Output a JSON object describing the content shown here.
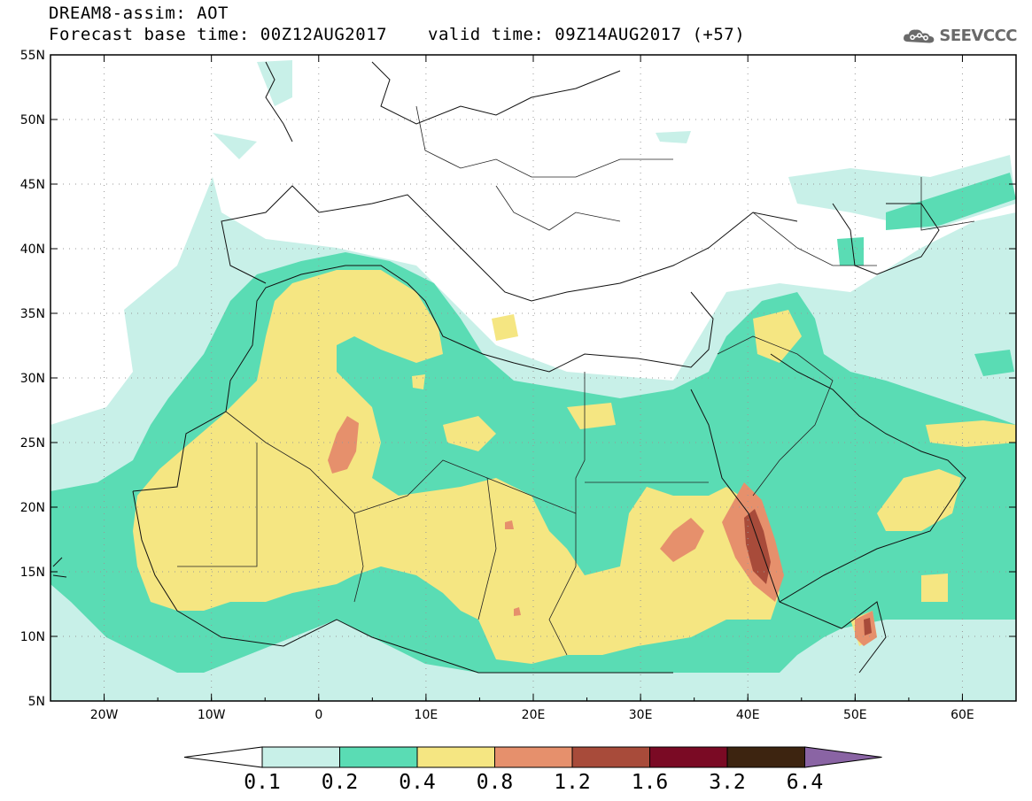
{
  "title": {
    "line1": "DREAM8-assim: AOT",
    "line2": "Forecast base time: 00Z12AUG2017",
    "valid": "valid time: 09Z14AUG2017 (+57)"
  },
  "logo": {
    "text": "SEEVCCC",
    "icon": "cloud-icon"
  },
  "map": {
    "lon_range": [
      -25,
      65
    ],
    "lat_range": [
      5,
      55
    ],
    "lon_ticks": [
      "20W",
      "10W",
      "0",
      "10E",
      "20E",
      "30E",
      "40E",
      "50E",
      "60E"
    ],
    "lat_ticks": [
      "5N",
      "10N",
      "15N",
      "20N",
      "25N",
      "30N",
      "35N",
      "40N",
      "45N",
      "50N",
      "55N"
    ],
    "grid": "dotted"
  },
  "colorbar": {
    "labels": [
      "0.1",
      "0.2",
      "0.4",
      "0.8",
      "1.2",
      "1.6",
      "3.2",
      "6.4"
    ],
    "colors": [
      "#c8f0e8",
      "#5adcb4",
      "#f5e682",
      "#e6906c",
      "#a84b3a",
      "#7a0a24",
      "#3d2410",
      "#8a64a4"
    ]
  }
}
